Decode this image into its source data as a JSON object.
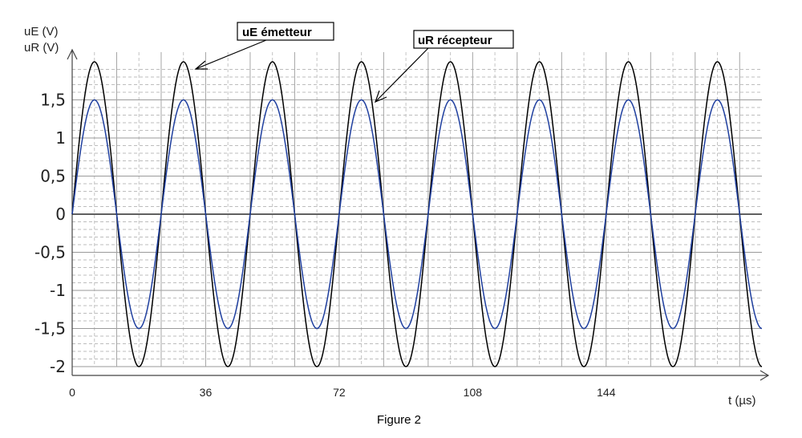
{
  "chart_data": {
    "type": "line",
    "title": "Figure 2",
    "xlabel": "t (µs)",
    "ylabel_top": "uE (V)",
    "ylabel_bottom": "uR (V)",
    "xlim": [
      0,
      186
    ],
    "ylim": [
      -2,
      2
    ],
    "xticks": [
      0,
      36,
      72,
      108,
      144
    ],
    "xtick_labels": [
      "0",
      "36",
      "72",
      "108",
      "144"
    ],
    "yticks": [
      1.5,
      1,
      0.5,
      0,
      -0.5,
      -1,
      -1.5,
      -2
    ],
    "ytick_labels": [
      "1,5",
      "1",
      "0,5",
      "0",
      "-0,5",
      "-1",
      "-1,5",
      "-2"
    ],
    "grid": true,
    "period_us": 24,
    "series": [
      {
        "name": "uE émetteur",
        "amplitude_V": 2.0,
        "phase_rad": 0,
        "color": "#000000"
      },
      {
        "name": "uR récepteur",
        "amplitude_V": 1.5,
        "phase_rad": 0,
        "color": "#1f3f9f"
      }
    ],
    "annotations": [
      "uE émetteur",
      "uR récepteur"
    ]
  }
}
